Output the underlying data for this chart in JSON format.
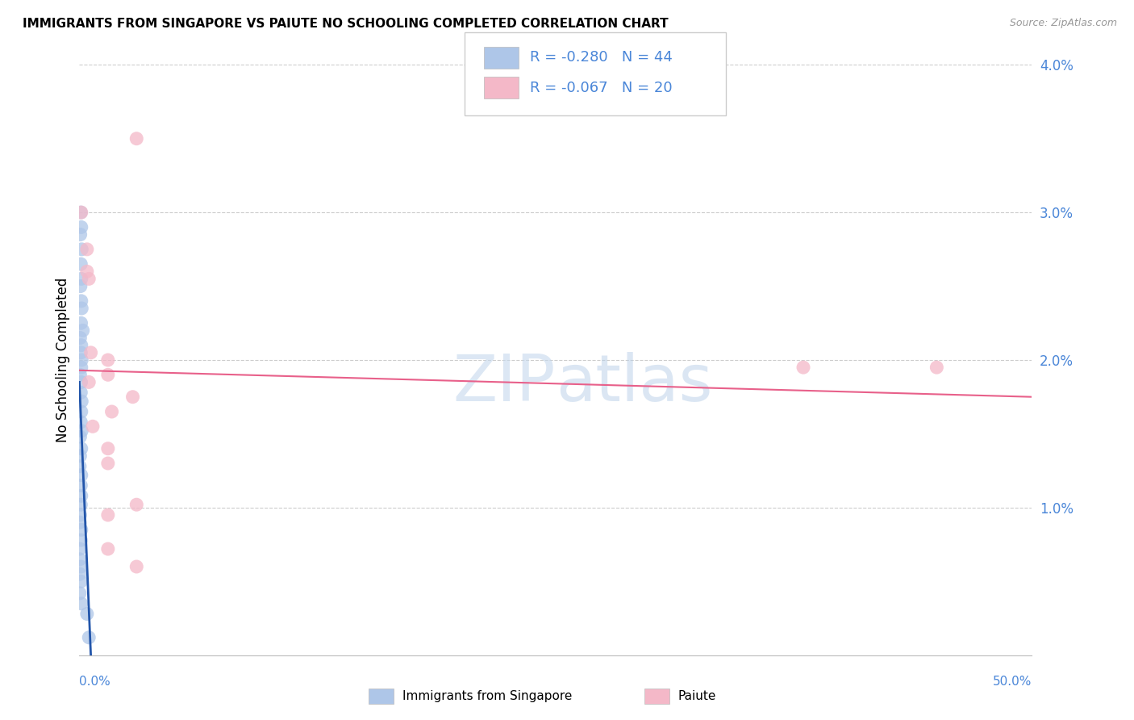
{
  "title": "IMMIGRANTS FROM SINGAPORE VS PAIUTE NO SCHOOLING COMPLETED CORRELATION CHART",
  "source": "Source: ZipAtlas.com",
  "ylabel": "No Schooling Completed",
  "xlim": [
    0.0,
    0.5
  ],
  "ylim": [
    0.0,
    0.04
  ],
  "legend_r1": "R = -0.280",
  "legend_n1": "N = 44",
  "legend_r2": "R = -0.067",
  "legend_n2": "N = 20",
  "blue_color": "#aec6e8",
  "pink_color": "#f4b8c8",
  "blue_line_color": "#2255aa",
  "pink_line_color": "#e8608a",
  "text_blue": "#4a86d8",
  "watermark_color": "#cddff0",
  "singapore_points": [
    [
      0.0008,
      0.03
    ],
    [
      0.001,
      0.029
    ],
    [
      0.0005,
      0.0285
    ],
    [
      0.0012,
      0.0275
    ],
    [
      0.0008,
      0.0265
    ],
    [
      0.001,
      0.0255
    ],
    [
      0.0006,
      0.025
    ],
    [
      0.001,
      0.024
    ],
    [
      0.0012,
      0.0235
    ],
    [
      0.0009,
      0.0225
    ],
    [
      0.0018,
      0.022
    ],
    [
      0.0004,
      0.0215
    ],
    [
      0.001,
      0.021
    ],
    [
      0.0008,
      0.0205
    ],
    [
      0.0012,
      0.02
    ],
    [
      0.001,
      0.0195
    ],
    [
      0.0004,
      0.019
    ],
    [
      0.0009,
      0.0185
    ],
    [
      0.0008,
      0.0178
    ],
    [
      0.0012,
      0.0172
    ],
    [
      0.001,
      0.0165
    ],
    [
      0.0008,
      0.0158
    ],
    [
      0.0012,
      0.0152
    ],
    [
      0.0004,
      0.0148
    ],
    [
      0.001,
      0.014
    ],
    [
      0.0004,
      0.0135
    ],
    [
      0.0002,
      0.0128
    ],
    [
      0.001,
      0.0122
    ],
    [
      0.0008,
      0.0115
    ],
    [
      0.001,
      0.0108
    ],
    [
      0.0008,
      0.0102
    ],
    [
      0.0004,
      0.0095
    ],
    [
      0.0002,
      0.009
    ],
    [
      0.001,
      0.0085
    ],
    [
      0.0008,
      0.0078
    ],
    [
      0.0002,
      0.0072
    ],
    [
      0.0002,
      0.0065
    ],
    [
      0.0008,
      0.006
    ],
    [
      0.0002,
      0.0055
    ],
    [
      0.0008,
      0.005
    ],
    [
      0.0002,
      0.0042
    ],
    [
      0.001,
      0.0035
    ],
    [
      0.004,
      0.0028
    ],
    [
      0.005,
      0.0012
    ]
  ],
  "paiute_points": [
    [
      0.001,
      0.03
    ],
    [
      0.004,
      0.0275
    ],
    [
      0.004,
      0.026
    ],
    [
      0.005,
      0.0255
    ],
    [
      0.03,
      0.035
    ],
    [
      0.006,
      0.0205
    ],
    [
      0.015,
      0.02
    ],
    [
      0.015,
      0.019
    ],
    [
      0.005,
      0.0185
    ],
    [
      0.028,
      0.0175
    ],
    [
      0.017,
      0.0165
    ],
    [
      0.007,
      0.0155
    ],
    [
      0.45,
      0.0195
    ],
    [
      0.015,
      0.014
    ],
    [
      0.015,
      0.013
    ],
    [
      0.03,
      0.0102
    ],
    [
      0.015,
      0.0095
    ],
    [
      0.015,
      0.0072
    ],
    [
      0.38,
      0.0195
    ],
    [
      0.03,
      0.006
    ]
  ],
  "singapore_trend_x": [
    0.0,
    0.006
  ],
  "singapore_trend_y": [
    0.0185,
    0.0
  ],
  "paiute_trend_x": [
    0.0,
    0.5
  ],
  "paiute_trend_y": [
    0.0193,
    0.0175
  ]
}
